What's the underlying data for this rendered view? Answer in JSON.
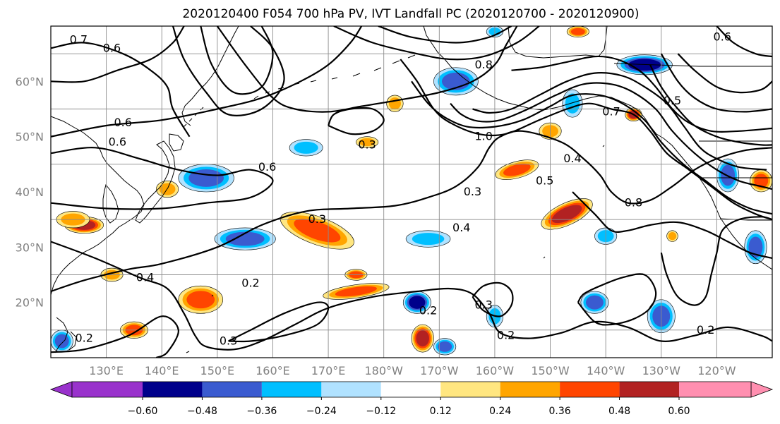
{
  "title": "2020120400 F054 700 hPa PV, IVT Landfall PC (2020120700 - 2020120900)",
  "map": {
    "lon_range_east": [
      120,
      250
    ],
    "lat_range": [
      10,
      70
    ],
    "lat_ticks": [
      {
        "lat": 20,
        "label": "20°N"
      },
      {
        "lat": 30,
        "label": "30°N"
      },
      {
        "lat": 40,
        "label": "40°N"
      },
      {
        "lat": 50,
        "label": "50°N"
      },
      {
        "lat": 60,
        "label": "60°N"
      }
    ],
    "lon_ticks": [
      {
        "lon": 130,
        "label": "130°E"
      },
      {
        "lon": 140,
        "label": "140°E"
      },
      {
        "lon": 150,
        "label": "150°E"
      },
      {
        "lon": 160,
        "label": "160°E"
      },
      {
        "lon": 170,
        "label": "170°E"
      },
      {
        "lon": 180,
        "label": "180°W"
      },
      {
        "lon": 190,
        "label": "170°W"
      },
      {
        "lon": 200,
        "label": "160°W"
      },
      {
        "lon": 210,
        "label": "150°W"
      },
      {
        "lon": 220,
        "label": "140°W"
      },
      {
        "lon": 230,
        "label": "130°W"
      },
      {
        "lon": 240,
        "label": "120°W"
      }
    ]
  },
  "colorbar": {
    "colors": [
      "#9932cc",
      "#00008b",
      "#3a5bd0",
      "#00bfff",
      "#b0e2ff",
      "#ffffff",
      "#ffe680",
      "#ffa500",
      "#ff4500",
      "#b22222",
      "#ff8fb0"
    ],
    "tick_labels": [
      "−0.60",
      "−0.48",
      "−0.36",
      "−0.24",
      "−0.12",
      "0.12",
      "0.24",
      "0.36",
      "0.48",
      "0.60"
    ]
  },
  "shading_features": [
    {
      "lon": 148,
      "lat": 42.5,
      "level": -0.36,
      "rx": 5,
      "ry": 2.5
    },
    {
      "lon": 155,
      "lat": 31.5,
      "level": -0.36,
      "rx": 5.5,
      "ry": 2
    },
    {
      "lon": 168,
      "lat": 33,
      "level": 0.36,
      "rx": 7,
      "ry": 2.5,
      "tilt": 20
    },
    {
      "lon": 126,
      "lat": 34,
      "level": 0.48,
      "rx": 3.5,
      "ry": 1.5
    },
    {
      "lon": 141,
      "lat": 40.5,
      "level": 0.24,
      "rx": 2,
      "ry": 1.5
    },
    {
      "lon": 147,
      "lat": 20.5,
      "level": 0.36,
      "rx": 4,
      "ry": 2.5
    },
    {
      "lon": 175,
      "lat": 22,
      "level": 0.36,
      "rx": 6,
      "ry": 1.2,
      "tilt": -8
    },
    {
      "lon": 186,
      "lat": 20,
      "level": -0.48,
      "rx": 2.5,
      "ry": 2
    },
    {
      "lon": 187,
      "lat": 13.5,
      "level": 0.48,
      "rx": 2,
      "ry": 2.5
    },
    {
      "lon": 191,
      "lat": 12,
      "level": -0.36,
      "rx": 2,
      "ry": 1.5
    },
    {
      "lon": 213,
      "lat": 36,
      "level": 0.48,
      "rx": 5,
      "ry": 2,
      "tilt": -25
    },
    {
      "lon": 204,
      "lat": 44,
      "level": 0.36,
      "rx": 4,
      "ry": 1.5,
      "tilt": -15
    },
    {
      "lon": 193,
      "lat": 60,
      "level": -0.36,
      "rx": 4,
      "ry": 2.5
    },
    {
      "lon": 227,
      "lat": 63,
      "level": -0.48,
      "rx": 5,
      "ry": 1.8
    },
    {
      "lon": 225,
      "lat": 54,
      "level": 0.48,
      "rx": 1.5,
      "ry": 1.2
    },
    {
      "lon": 230,
      "lat": 17.5,
      "level": -0.36,
      "rx": 2.5,
      "ry": 3
    },
    {
      "lon": 218,
      "lat": 20,
      "level": -0.36,
      "rx": 2.5,
      "ry": 2
    },
    {
      "lon": 188,
      "lat": 31.5,
      "level": -0.24,
      "rx": 4,
      "ry": 1.5
    },
    {
      "lon": 166,
      "lat": 48,
      "level": -0.24,
      "rx": 3,
      "ry": 1.5
    },
    {
      "lon": 177,
      "lat": 49,
      "level": 0.24,
      "rx": 2,
      "ry": 1
    },
    {
      "lon": 124,
      "lat": 35,
      "level": 0.24,
      "rx": 3,
      "ry": 1.5
    },
    {
      "lon": 175,
      "lat": 25,
      "level": 0.36,
      "rx": 2,
      "ry": 1
    },
    {
      "lon": 131,
      "lat": 25,
      "level": 0.24,
      "rx": 2,
      "ry": 1.2
    },
    {
      "lon": 135,
      "lat": 15,
      "level": 0.36,
      "rx": 2.5,
      "ry": 1.5
    },
    {
      "lon": 122,
      "lat": 13,
      "level": -0.36,
      "rx": 2,
      "ry": 2
    },
    {
      "lon": 200,
      "lat": 17.5,
      "level": -0.24,
      "rx": 1.5,
      "ry": 2
    },
    {
      "lon": 242,
      "lat": 43,
      "level": -0.36,
      "rx": 2,
      "ry": 3
    },
    {
      "lon": 248,
      "lat": 42,
      "level": 0.36,
      "rx": 2,
      "ry": 2
    },
    {
      "lon": 214,
      "lat": 56,
      "level": -0.24,
      "rx": 1.8,
      "ry": 2.5
    },
    {
      "lon": 210,
      "lat": 51,
      "level": 0.24,
      "rx": 2,
      "ry": 1.5
    },
    {
      "lon": 220,
      "lat": 32,
      "level": -0.24,
      "rx": 2,
      "ry": 1.5
    },
    {
      "lon": 232,
      "lat": 32,
      "level": 0.24,
      "rx": 1,
      "ry": 1
    },
    {
      "lon": 247,
      "lat": 30,
      "level": -0.36,
      "rx": 2,
      "ry": 3
    },
    {
      "lon": 182,
      "lat": 56,
      "level": 0.24,
      "rx": 1.5,
      "ry": 1.5
    },
    {
      "lon": 200,
      "lat": 69,
      "level": -0.24,
      "rx": 1.5,
      "ry": 1
    },
    {
      "lon": 215,
      "lat": 69,
      "level": 0.36,
      "rx": 2,
      "ry": 1
    }
  ],
  "contour_labels": [
    {
      "lon": 125,
      "lat": 67.5,
      "text": "0.7"
    },
    {
      "lon": 131,
      "lat": 66,
      "text": "0.6"
    },
    {
      "lon": 133,
      "lat": 52.5,
      "text": "0.6"
    },
    {
      "lon": 132,
      "lat": 49,
      "text": "0.6"
    },
    {
      "lon": 159,
      "lat": 44.5,
      "text": "0.6"
    },
    {
      "lon": 137,
      "lat": 24.5,
      "text": "0.4"
    },
    {
      "lon": 168,
      "lat": 35,
      "text": "0.3"
    },
    {
      "lon": 126,
      "lat": 13.5,
      "text": "0.2"
    },
    {
      "lon": 156,
      "lat": 23.5,
      "text": "0.2"
    },
    {
      "lon": 152,
      "lat": 13,
      "text": "0.3"
    },
    {
      "lon": 177,
      "lat": 48.5,
      "text": "0.3"
    },
    {
      "lon": 198,
      "lat": 50,
      "text": "1.0"
    },
    {
      "lon": 196,
      "lat": 40,
      "text": "0.3"
    },
    {
      "lon": 209,
      "lat": 42,
      "text": "0.5"
    },
    {
      "lon": 214,
      "lat": 46,
      "text": "0.4"
    },
    {
      "lon": 194,
      "lat": 33.5,
      "text": "0.4"
    },
    {
      "lon": 188,
      "lat": 18.5,
      "text": "0.2"
    },
    {
      "lon": 198,
      "lat": 19.5,
      "text": "0.3"
    },
    {
      "lon": 202,
      "lat": 14,
      "text": "0.2"
    },
    {
      "lon": 238,
      "lat": 15,
      "text": "0.2"
    },
    {
      "lon": 232,
      "lat": 56.5,
      "text": "0.5"
    },
    {
      "lon": 221,
      "lat": 54.5,
      "text": "0.7"
    },
    {
      "lon": 225,
      "lat": 38,
      "text": "0.8"
    },
    {
      "lon": 241,
      "lat": 68,
      "text": "0.6"
    },
    {
      "lon": 198,
      "lat": 63,
      "text": "0.8"
    }
  ],
  "contours": [
    [
      [
        120,
        50
      ],
      [
        130,
        52
      ],
      [
        140,
        53
      ],
      [
        150,
        55
      ],
      [
        158,
        57
      ],
      [
        165,
        60
      ],
      [
        170,
        63
      ],
      [
        174,
        67
      ],
      [
        176,
        70
      ]
    ],
    [
      [
        120,
        66
      ],
      [
        126,
        67
      ],
      [
        133,
        65
      ],
      [
        138,
        62
      ],
      [
        141,
        59
      ],
      [
        142,
        55
      ],
      [
        145,
        50
      ]
    ],
    [
      [
        120,
        60
      ],
      [
        126,
        60
      ],
      [
        132,
        62
      ],
      [
        138,
        64
      ],
      [
        142,
        67
      ],
      [
        144,
        70
      ]
    ],
    [
      [
        142,
        70
      ],
      [
        144,
        64
      ],
      [
        148,
        58
      ],
      [
        152,
        54
      ],
      [
        158,
        55
      ],
      [
        162,
        60
      ],
      [
        160,
        66
      ],
      [
        156,
        70
      ]
    ],
    [
      [
        147,
        70
      ],
      [
        149,
        63
      ],
      [
        153,
        58
      ],
      [
        158,
        59
      ],
      [
        160,
        65
      ],
      [
        158,
        70
      ]
    ],
    [
      [
        120,
        47
      ],
      [
        128,
        48
      ],
      [
        136,
        46
      ],
      [
        143,
        44
      ],
      [
        150,
        43
      ],
      [
        156,
        44
      ],
      [
        160,
        42
      ],
      [
        156,
        39
      ],
      [
        148,
        38
      ],
      [
        140,
        37
      ],
      [
        130,
        37
      ],
      [
        120,
        38
      ]
    ],
    [
      [
        120,
        22
      ],
      [
        126,
        24
      ],
      [
        134,
        26
      ],
      [
        140,
        27
      ],
      [
        150,
        30
      ],
      [
        158,
        34
      ],
      [
        166,
        36.5
      ],
      [
        174,
        37
      ],
      [
        182,
        37.5
      ],
      [
        188,
        39
      ],
      [
        193,
        41
      ],
      [
        197,
        44.5
      ],
      [
        199,
        48
      ],
      [
        201,
        50
      ],
      [
        205,
        51
      ],
      [
        212,
        49
      ],
      [
        216,
        46
      ],
      [
        219,
        43
      ],
      [
        221,
        40
      ],
      [
        224,
        38
      ],
      [
        228,
        38.5
      ],
      [
        232,
        41
      ],
      [
        236,
        44
      ],
      [
        240,
        46
      ],
      [
        245,
        47.5
      ],
      [
        250,
        48
      ]
    ],
    [
      [
        120,
        31
      ],
      [
        128,
        28
      ],
      [
        136,
        24.5
      ],
      [
        141,
        22.5
      ],
      [
        144,
        18
      ],
      [
        146,
        14
      ],
      [
        148,
        12
      ],
      [
        153,
        11.5
      ],
      [
        158,
        13
      ],
      [
        164,
        16
      ],
      [
        170,
        19
      ],
      [
        178,
        21
      ],
      [
        186,
        22
      ],
      [
        192,
        22.5
      ],
      [
        196,
        21.5
      ],
      [
        199,
        18
      ],
      [
        201,
        14.5
      ],
      [
        206,
        13.5
      ],
      [
        212,
        14.5
      ],
      [
        218,
        16.5
      ],
      [
        224,
        15.5
      ],
      [
        230,
        13
      ],
      [
        236,
        14
      ],
      [
        242,
        15.5
      ],
      [
        248,
        14
      ],
      [
        250,
        13
      ]
    ],
    [
      [
        120,
        11
      ],
      [
        126,
        11.5
      ],
      [
        134,
        14
      ],
      [
        140,
        17.5
      ],
      [
        143,
        15
      ],
      [
        141,
        11
      ],
      [
        139,
        10
      ]
    ],
    [
      [
        150,
        70
      ],
      [
        155,
        63
      ],
      [
        160,
        57
      ],
      [
        164,
        55
      ],
      [
        170,
        54.5
      ],
      [
        176,
        55.5
      ],
      [
        182,
        56.5
      ],
      [
        190,
        58
      ],
      [
        196,
        60
      ],
      [
        200,
        63
      ],
      [
        202,
        66.5
      ],
      [
        204,
        70
      ]
    ],
    [
      [
        171,
        70
      ],
      [
        178,
        67
      ],
      [
        186,
        65
      ],
      [
        192,
        64
      ],
      [
        198,
        64.5
      ],
      [
        204,
        67
      ],
      [
        208,
        70
      ]
    ],
    [
      [
        179,
        70
      ],
      [
        185,
        68
      ],
      [
        193,
        67
      ],
      [
        199,
        68
      ],
      [
        203,
        70
      ]
    ],
    [
      [
        183,
        64
      ],
      [
        186,
        60
      ],
      [
        189,
        55
      ],
      [
        192,
        52.5
      ],
      [
        197,
        50.5
      ],
      [
        202,
        50.5
      ],
      [
        208,
        53
      ],
      [
        213,
        55
      ],
      [
        217,
        56
      ],
      [
        221,
        55
      ],
      [
        225,
        54
      ],
      [
        228,
        51
      ],
      [
        231,
        47
      ],
      [
        235,
        44
      ],
      [
        239,
        41
      ],
      [
        243,
        38
      ],
      [
        247,
        36
      ],
      [
        250,
        35
      ]
    ],
    [
      [
        185,
        60
      ],
      [
        188,
        56
      ],
      [
        191,
        53.5
      ],
      [
        195,
        51.8
      ],
      [
        200,
        51.8
      ],
      [
        205,
        53
      ],
      [
        210,
        55.5
      ],
      [
        214,
        57.5
      ],
      [
        219,
        57.5
      ],
      [
        223,
        56
      ],
      [
        227,
        53
      ],
      [
        230,
        49
      ],
      [
        234,
        45
      ],
      [
        238,
        42
      ],
      [
        242,
        39
      ],
      [
        246,
        37
      ],
      [
        250,
        36
      ]
    ],
    [
      [
        192,
        56
      ],
      [
        194,
        54
      ],
      [
        197,
        52.8
      ],
      [
        201,
        53
      ],
      [
        206,
        55
      ],
      [
        211,
        57.5
      ],
      [
        216,
        59.5
      ],
      [
        221,
        59.5
      ],
      [
        225,
        58
      ],
      [
        229,
        55
      ],
      [
        232,
        51
      ],
      [
        236,
        47
      ],
      [
        240,
        44
      ],
      [
        244,
        42
      ],
      [
        248,
        41
      ],
      [
        250,
        40.5
      ]
    ],
    [
      [
        196,
        55
      ],
      [
        199,
        54.3
      ],
      [
        203,
        55
      ],
      [
        208,
        57.5
      ],
      [
        213,
        60
      ],
      [
        218,
        61.5
      ],
      [
        223,
        61
      ],
      [
        227,
        59
      ],
      [
        231,
        56
      ],
      [
        234,
        52
      ],
      [
        237,
        48
      ],
      [
        240,
        46
      ],
      [
        244,
        44.5
      ],
      [
        249,
        44
      ]
    ],
    [
      [
        203,
        62
      ],
      [
        208,
        62.5
      ],
      [
        213,
        63.5
      ],
      [
        218,
        64.5
      ],
      [
        222,
        64
      ],
      [
        226,
        62
      ],
      [
        229,
        59
      ],
      [
        232,
        55
      ],
      [
        235,
        52.5
      ],
      [
        239,
        51
      ],
      [
        244,
        51
      ],
      [
        250,
        51.5
      ]
    ],
    [
      [
        233,
        65
      ],
      [
        236,
        62
      ],
      [
        240,
        59
      ],
      [
        244,
        58
      ],
      [
        248,
        58.5
      ],
      [
        250,
        60
      ]
    ],
    [
      [
        230,
        65
      ],
      [
        233,
        60
      ],
      [
        236,
        57
      ],
      [
        240,
        55
      ],
      [
        245,
        54.5
      ],
      [
        250,
        55
      ]
    ],
    [
      [
        228,
        63
      ],
      [
        230,
        59
      ],
      [
        233,
        55
      ],
      [
        236,
        52
      ],
      [
        240,
        50
      ],
      [
        244,
        49
      ],
      [
        248,
        48.5
      ],
      [
        250,
        48.5
      ]
    ],
    [
      [
        240,
        70
      ],
      [
        243,
        67
      ],
      [
        247,
        65
      ],
      [
        250,
        64.5
      ]
    ],
    [
      [
        214,
        40
      ],
      [
        218,
        36
      ],
      [
        221,
        33
      ],
      [
        224,
        33
      ],
      [
        228,
        34
      ],
      [
        233,
        34.5
      ],
      [
        238,
        33
      ],
      [
        242,
        31
      ],
      [
        246,
        29
      ],
      [
        250,
        28
      ]
    ],
    [
      [
        230,
        29
      ],
      [
        231,
        25
      ],
      [
        233,
        21
      ],
      [
        236,
        19.5
      ],
      [
        238,
        21
      ],
      [
        239,
        25
      ],
      [
        240,
        29
      ],
      [
        241,
        33
      ],
      [
        244,
        35
      ],
      [
        248,
        35.5
      ],
      [
        250,
        35
      ]
    ],
    [
      [
        215,
        20
      ],
      [
        218,
        16.5
      ],
      [
        221,
        16
      ],
      [
        225,
        17
      ],
      [
        228,
        19
      ],
      [
        229,
        22
      ],
      [
        227,
        25
      ],
      [
        223,
        24.5
      ],
      [
        219,
        23
      ],
      [
        216,
        21.5
      ],
      [
        215,
        20
      ]
    ],
    [
      [
        196,
        21
      ],
      [
        198,
        18.5
      ],
      [
        201,
        17.5
      ],
      [
        203,
        19.5
      ],
      [
        203,
        22
      ],
      [
        201,
        23.5
      ],
      [
        198,
        23
      ],
      [
        196,
        21
      ]
    ],
    [
      [
        152,
        13
      ],
      [
        156,
        15
      ],
      [
        162,
        18
      ],
      [
        168,
        20
      ],
      [
        170,
        19
      ],
      [
        168,
        16
      ],
      [
        162,
        14
      ],
      [
        156,
        13
      ],
      [
        152,
        13
      ]
    ],
    [
      [
        170,
        52
      ],
      [
        174,
        50.5
      ],
      [
        178,
        51
      ],
      [
        180,
        53
      ],
      [
        178,
        55
      ],
      [
        174,
        55
      ],
      [
        171,
        54
      ],
      [
        170,
        52
      ]
    ]
  ]
}
